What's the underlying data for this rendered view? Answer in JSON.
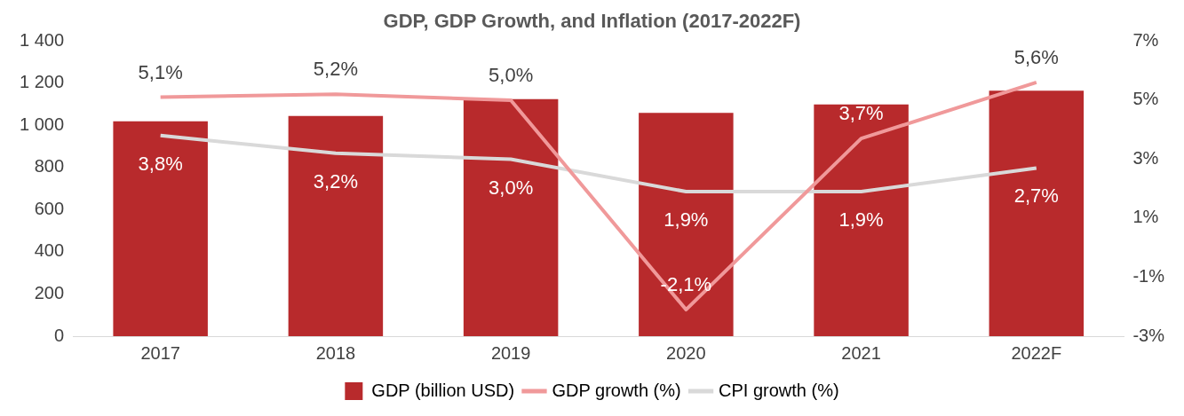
{
  "chart_data": {
    "type": "bar",
    "title": "GDP, GDP Growth, and Inflation (2017-2022F)",
    "categories": [
      "2017",
      "2018",
      "2019",
      "2020",
      "2021",
      "2022F"
    ],
    "series": [
      {
        "name": "GDP (billion USD)",
        "color": "#b82a2c",
        "values": [
          1020,
          1045,
          1125,
          1060,
          1100,
          1165
        ]
      },
      {
        "name": "GDP growth (%)",
        "type": "line",
        "axis": "y2",
        "color": "#f0999a",
        "values": [
          5.1,
          5.2,
          5.0,
          -2.1,
          3.7,
          5.6
        ],
        "value_labels": [
          "5,1%",
          "5,2%",
          "5,0%",
          "-2,1%",
          "3,7%",
          "5,6%"
        ]
      },
      {
        "name": "CPI growth (%)",
        "type": "line",
        "axis": "y2",
        "color": "#d9d9d9",
        "values": [
          3.8,
          3.2,
          3.0,
          1.9,
          1.9,
          2.7
        ],
        "value_labels": [
          "3,8%",
          "3,2%",
          "3,0%",
          "1,9%",
          "1,9%",
          "2,7%"
        ]
      }
    ],
    "ylim": [
      0,
      1400
    ],
    "yticks": [
      0,
      200,
      400,
      600,
      800,
      {
        "value": 1000,
        "label": "1 000"
      },
      {
        "value": 1200,
        "label": "1 200"
      },
      {
        "value": 1400,
        "label": "1 400"
      }
    ],
    "y2lim": [
      -3,
      7
    ],
    "y2ticks": [
      {
        "value": -3,
        "label": "-3%"
      },
      {
        "value": -1,
        "label": "-1%"
      },
      {
        "value": 1,
        "label": "1%"
      },
      {
        "value": 3,
        "label": "3%"
      },
      {
        "value": 5,
        "label": "5%"
      },
      {
        "value": 7,
        "label": "7%"
      }
    ],
    "grid": false,
    "legend": "bottom",
    "marker": "none",
    "line_style": "solid"
  }
}
